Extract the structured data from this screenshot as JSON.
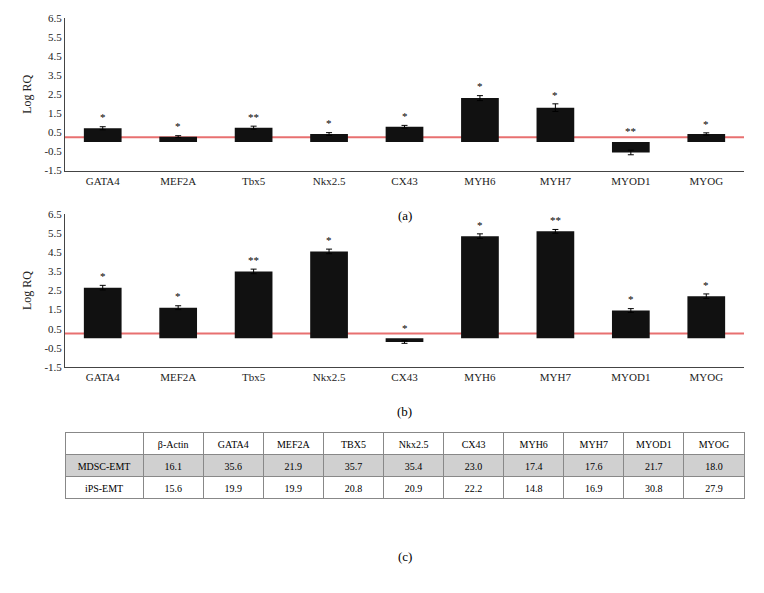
{
  "chart_data": [
    {
      "type": "bar",
      "title": "(a)",
      "categories": [
        "GATA4",
        "MEF2A",
        "Tbx5",
        "Nkx2.5",
        "CX43",
        "MYH6",
        "MYH7",
        "MYOD1",
        "MYOG"
      ],
      "values": [
        0.72,
        0.28,
        0.75,
        0.42,
        0.8,
        2.3,
        1.8,
        -0.55,
        0.42
      ],
      "errors": [
        0.08,
        0.05,
        0.08,
        0.07,
        0.07,
        0.13,
        0.2,
        0.12,
        0.06
      ],
      "annotations": [
        "*",
        "*",
        "**",
        "*",
        "*",
        "*",
        "*",
        "**",
        "*"
      ],
      "hline": {
        "value": 0.25,
        "color": "#e87070"
      },
      "color": "#111111",
      "ylabel": "Log RQ",
      "ylim": [
        -1.5,
        6.5
      ],
      "yticks": [
        -1.5,
        -0.5,
        0.5,
        1.5,
        2.5,
        3.5,
        4.5,
        5.5,
        6.5
      ],
      "grid": false
    },
    {
      "type": "bar",
      "title": "(b)",
      "categories": [
        "GATA4",
        "MEF2A",
        "Tbx5",
        "Nkx2.5",
        "CX43",
        "MYH6",
        "MYH7",
        "MYOD1",
        "MYOG"
      ],
      "values": [
        2.65,
        1.6,
        3.5,
        4.55,
        -0.2,
        5.35,
        5.6,
        1.45,
        2.2
      ],
      "errors": [
        0.12,
        0.1,
        0.12,
        0.12,
        0.07,
        0.12,
        0.1,
        0.1,
        0.12
      ],
      "annotations": [
        "*",
        "*",
        "**",
        "*",
        "*",
        "*",
        "**",
        "*",
        "*"
      ],
      "hline": {
        "value": 0.25,
        "color": "#e87070"
      },
      "color": "#111111",
      "ylabel": "Log RQ",
      "ylim": [
        -1.5,
        6.5
      ],
      "yticks": [
        -1.5,
        -0.5,
        0.5,
        1.5,
        2.5,
        3.5,
        4.5,
        5.5,
        6.5
      ],
      "grid": false
    },
    {
      "type": "table",
      "title": "(c)",
      "columns": [
        "β-Actin",
        "GATA4",
        "MEF2A",
        "TBX5",
        "Nkx2.5",
        "CX43",
        "MYH6",
        "MYH7",
        "MYOD1",
        "MYOG"
      ],
      "rows": [
        "MDSC-EMT",
        "iPS-EMT"
      ],
      "cells": [
        [
          "16.1",
          "35.6",
          "21.9",
          "35.7",
          "35.4",
          "23.0",
          "17.4",
          "17.6",
          "21.7",
          "18.0"
        ],
        [
          "15.6",
          "19.9",
          "19.9",
          "20.8",
          "20.9",
          "22.2",
          "14.8",
          "16.9",
          "30.8",
          "27.9"
        ]
      ],
      "colors": [
        "#d0d0d0",
        "#ffffff"
      ]
    }
  ]
}
